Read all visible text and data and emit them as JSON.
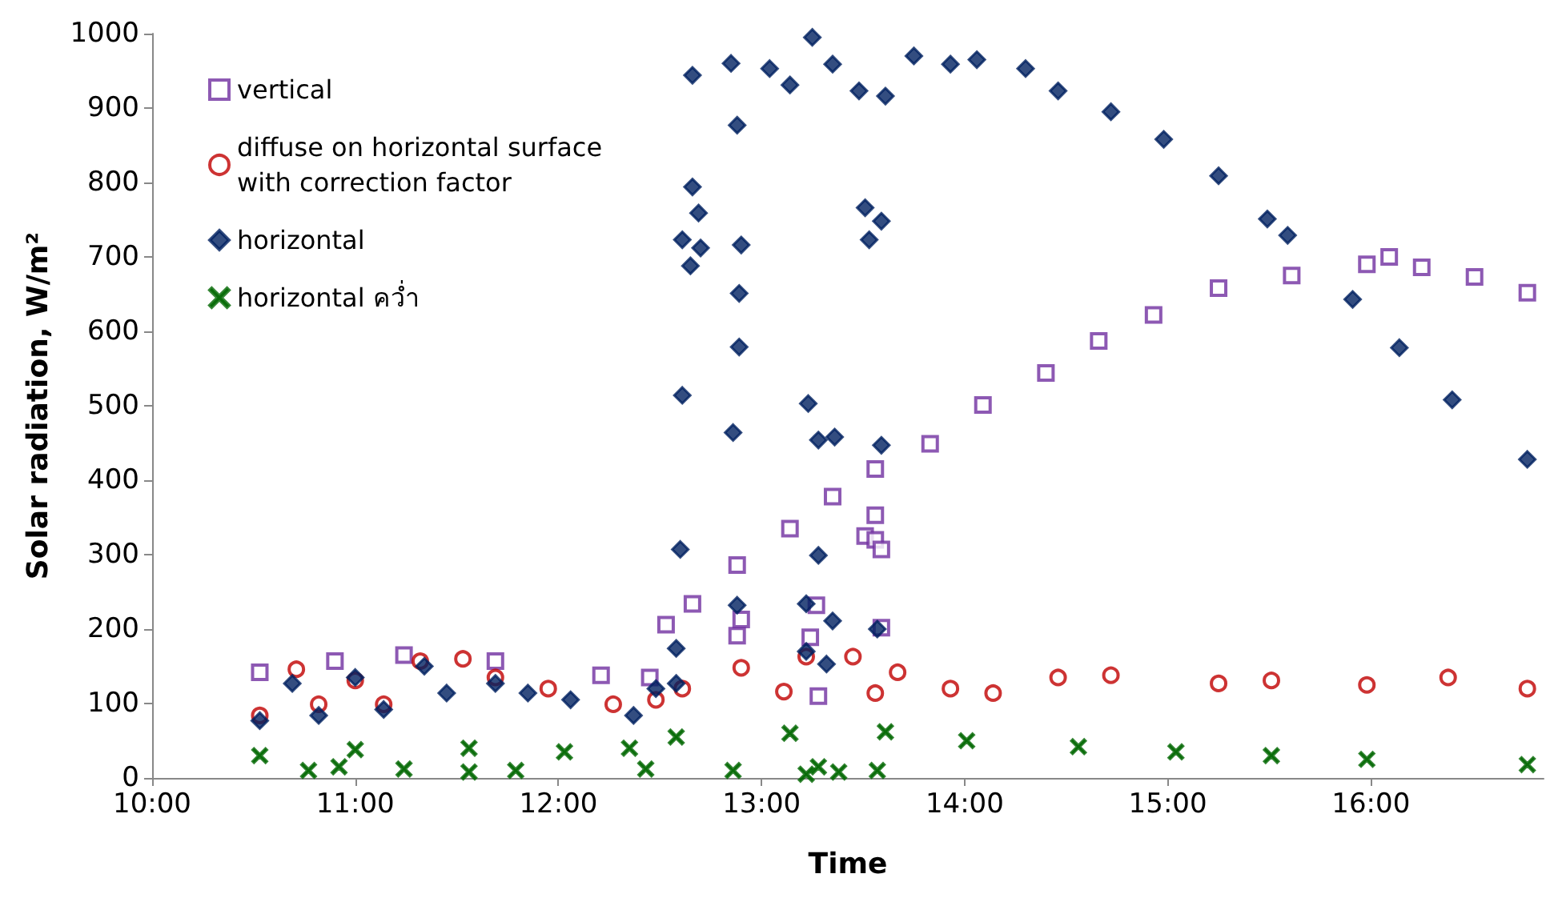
{
  "chart_data": {
    "type": "scatter",
    "xlabel": "Time",
    "ylabel": "Solar radiation, W/m²",
    "xlim": [
      10,
      16.85
    ],
    "xticks": [
      {
        "value": 10,
        "label": "10:00"
      },
      {
        "value": 11,
        "label": "11:00"
      },
      {
        "value": 12,
        "label": "12:00"
      },
      {
        "value": 13,
        "label": "13:00"
      },
      {
        "value": 14,
        "label": "14:00"
      },
      {
        "value": 15,
        "label": "15:00"
      },
      {
        "value": 16,
        "label": "16:00"
      }
    ],
    "ylim": [
      0,
      1000
    ],
    "yticks": [
      0,
      100,
      200,
      300,
      400,
      500,
      600,
      700,
      800,
      900,
      1000
    ],
    "grid": false,
    "legend": "top left",
    "series": [
      {
        "name": "vertical",
        "color": "#7030a0",
        "marker": "square",
        "x": [
          10.53,
          10.9,
          11.24,
          11.69,
          12.21,
          12.45,
          12.53,
          12.66,
          12.88,
          12.88,
          12.9,
          13.14,
          13.24,
          13.27,
          13.28,
          13.35,
          13.51,
          13.56,
          13.56,
          13.56,
          13.59,
          13.59,
          13.83,
          14.09,
          14.4,
          14.66,
          14.93,
          15.25,
          15.61,
          15.98,
          16.09,
          16.25,
          16.51,
          16.77
        ],
        "values": [
          142,
          157,
          165,
          157,
          138,
          135,
          206,
          234,
          286,
          191,
          213,
          335,
          189,
          232,
          110,
          378,
          325,
          415,
          353,
          320,
          307,
          202,
          449,
          501,
          544,
          587,
          622,
          658,
          675,
          690,
          700,
          686,
          673,
          652
        ]
      },
      {
        "name": "diffuse on horizontal surface with correction factor",
        "color": "#c00000",
        "marker": "circle",
        "x": [
          10.53,
          10.71,
          10.82,
          11.0,
          11.14,
          11.32,
          11.53,
          11.69,
          11.95,
          12.27,
          12.48,
          12.61,
          12.9,
          13.11,
          13.22,
          13.45,
          13.56,
          13.67,
          13.93,
          14.14,
          14.46,
          14.72,
          15.25,
          15.51,
          15.98,
          16.38,
          16.77
        ],
        "values": [
          84,
          146,
          99,
          131,
          99,
          157,
          160,
          135,
          120,
          99,
          105,
          120,
          148,
          116,
          163,
          163,
          114,
          142,
          120,
          114,
          135,
          138,
          127,
          131,
          125,
          135,
          120
        ]
      },
      {
        "name": "horizontal",
        "color": "#002060",
        "marker": "diamond",
        "x": [
          10.53,
          10.69,
          10.82,
          11.0,
          11.14,
          11.34,
          11.45,
          11.69,
          11.85,
          12.06,
          12.37,
          12.48,
          12.58,
          12.58,
          12.6,
          12.61,
          12.61,
          12.65,
          12.66,
          12.66,
          12.69,
          12.7,
          12.85,
          12.86,
          12.88,
          12.88,
          12.89,
          12.89,
          12.9,
          13.04,
          13.14,
          13.22,
          13.22,
          13.23,
          13.25,
          13.28,
          13.28,
          13.32,
          13.35,
          13.35,
          13.36,
          13.48,
          13.51,
          13.53,
          13.57,
          13.59,
          13.59,
          13.61,
          13.75,
          13.93,
          14.06,
          14.3,
          14.46,
          14.72,
          14.98,
          15.25,
          15.49,
          15.59,
          15.91,
          16.14,
          16.4,
          16.77
        ],
        "values": [
          77,
          127,
          84,
          135,
          92,
          150,
          114,
          127,
          114,
          105,
          84,
          120,
          127,
          174,
          307,
          514,
          723,
          688,
          794,
          944,
          759,
          712,
          960,
          464,
          877,
          232,
          651,
          579,
          716,
          953,
          931,
          234,
          170,
          503,
          995,
          454,
          299,
          153,
          959,
          211,
          458,
          923,
          766,
          723,
          200,
          748,
          447,
          916,
          970,
          959,
          965,
          953,
          923,
          895,
          858,
          809,
          751,
          729,
          643,
          578,
          508,
          428
        ]
      },
      {
        "name": "horizontal คว่ำ",
        "color": "#006600",
        "marker": "cross",
        "x": [
          10.53,
          10.77,
          10.92,
          11.0,
          11.24,
          11.56,
          11.56,
          11.79,
          12.03,
          12.35,
          12.43,
          12.58,
          12.86,
          13.14,
          13.22,
          13.28,
          13.38,
          13.57,
          13.61,
          14.01,
          14.56,
          15.04,
          15.51,
          15.98,
          16.77
        ],
        "values": [
          30,
          10,
          15,
          38,
          12,
          40,
          8,
          10,
          35,
          40,
          12,
          55,
          10,
          60,
          5,
          15,
          8,
          10,
          62,
          50,
          42,
          35,
          30,
          25,
          18
        ]
      }
    ]
  }
}
